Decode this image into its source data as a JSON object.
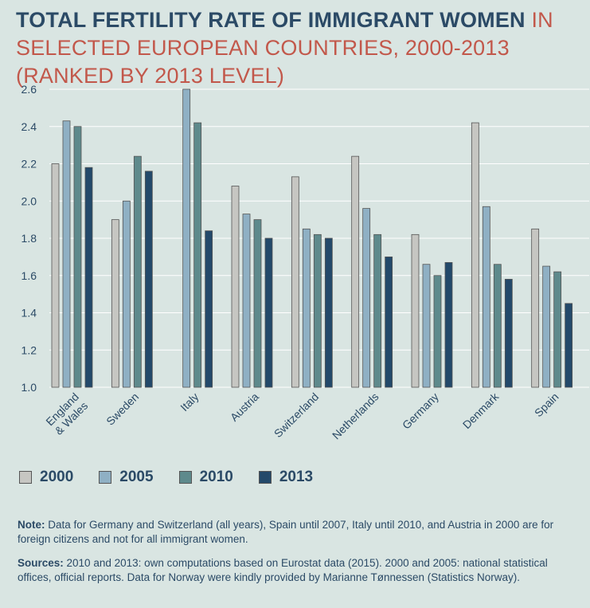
{
  "title": {
    "bold": "Total fertility rate of immigrant women",
    "light": " in selected European countries, 2000-2013 (ranked by 2013 level)"
  },
  "chart_data": {
    "type": "bar",
    "ylim": [
      1.0,
      2.6
    ],
    "yticks": [
      "1.0",
      "1.2",
      "1.4",
      "1.6",
      "1.8",
      "2.0",
      "2.2",
      "2.4",
      "2.6"
    ],
    "grid": true,
    "legend_position": "bottom",
    "categories": [
      "England & Wales",
      "Sweden",
      "Italy",
      "Austria",
      "Switzerland",
      "Netherlands",
      "Germany",
      "Denmark",
      "Spain"
    ],
    "category_lines": [
      [
        "England",
        "& Wales"
      ],
      [
        "Sweden"
      ],
      [
        "Italy"
      ],
      [
        "Austria"
      ],
      [
        "Switzerland"
      ],
      [
        "Netherlands"
      ],
      [
        "Germany"
      ],
      [
        "Denmark"
      ],
      [
        "Spain"
      ]
    ],
    "series": [
      {
        "name": "2000",
        "color": "#c6c6c2",
        "values": [
          2.2,
          1.9,
          null,
          2.08,
          2.13,
          2.24,
          1.82,
          2.42,
          1.85
        ]
      },
      {
        "name": "2005",
        "color": "#8fb0c4",
        "values": [
          2.43,
          2.0,
          2.6,
          1.93,
          1.85,
          1.96,
          1.66,
          1.97,
          1.65
        ]
      },
      {
        "name": "2010",
        "color": "#5e8a8c",
        "values": [
          2.4,
          2.24,
          2.42,
          1.9,
          1.82,
          1.82,
          1.6,
          1.66,
          1.62
        ]
      },
      {
        "name": "2013",
        "color": "#23496a",
        "values": [
          2.18,
          2.16,
          1.84,
          1.8,
          1.8,
          1.7,
          1.67,
          1.58,
          1.45
        ]
      }
    ]
  },
  "legend": [
    {
      "label": "2000",
      "color": "#c6c6c2"
    },
    {
      "label": "2005",
      "color": "#8fb0c4"
    },
    {
      "label": "2010",
      "color": "#5e8a8c"
    },
    {
      "label": "2013",
      "color": "#23496a"
    }
  ],
  "notes": {
    "note_label": "Note:",
    "note_text": " Data for Germany and Switzerland (all years), Spain until 2007, Italy until 2010, and Austria in 2000 are for foreign citizens and not for all immigrant women.",
    "sources_label": "Sources:",
    "sources_text": " 2010 and 2013: own computations based on Eurostat data (2015). 2000 and 2005: national statistical offices, official reports. Data for Norway were kindly provided by Marianne Tønnessen (Statistics Norway)."
  }
}
